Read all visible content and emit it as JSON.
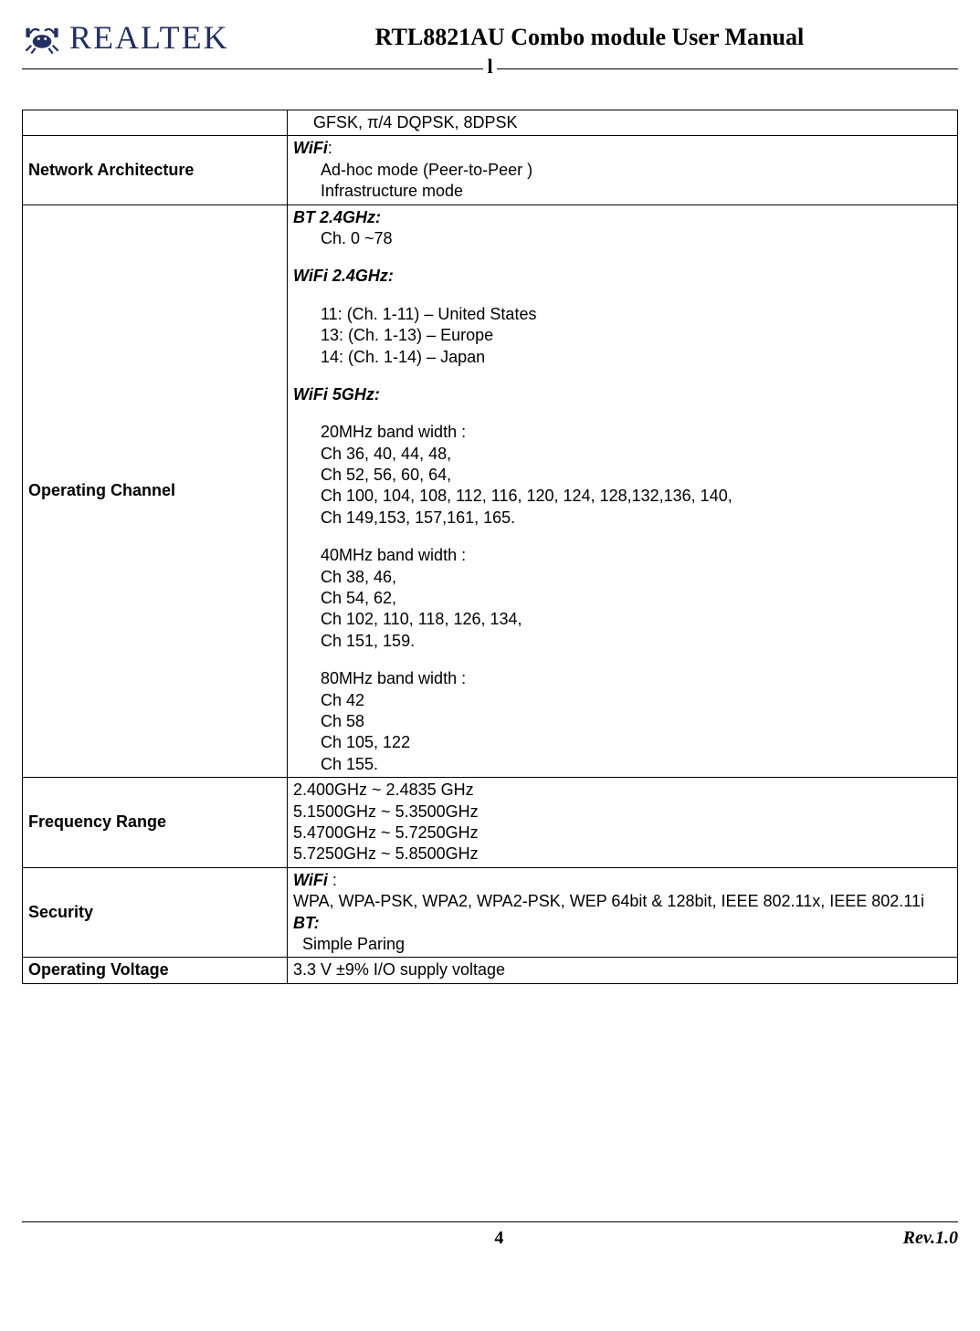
{
  "header": {
    "brand": "REALTEK",
    "doc_title": "RTL8821AU Combo module User Manual",
    "header_l_char": "l",
    "logo_color": "#232f61"
  },
  "table": {
    "rows": [
      {
        "label": "",
        "value_html": "<span class='small-indent'>GFSK, &pi;/4 DQPSK, 8DPSK</span>"
      },
      {
        "label": "Network Architecture",
        "value_html": "<span class='bi'>WiFi</span>:<br><span class='indent'>Ad-hoc mode (Peer-to-Peer )</span><span class='indent'>Infrastructure mode</span>"
      },
      {
        "label": "Operating Channel",
        "value_html": "<span class='bi'>BT 2.4GHz:</span><br><span class='indent'>Ch. 0 ~78</span><span class='sp'></span><span class='bi'>WiFi 2.4GHz:</span><br><span class='sp'></span><span class='indent'>11: (Ch. 1-11) &ndash; United States</span><span class='indent'>13: (Ch. 1-13) &ndash; Europe</span><span class='indent'>14: (Ch. 1-14) &ndash; Japan</span><span class='sp'></span><span class='bi'>WiFi 5GHz:</span><br><span class='sp'></span><span class='indent'>20MHz band width :</span><span class='indent'>Ch 36, 40, 44, 48,</span><span class='indent'>Ch 52, 56, 60, 64,</span><span class='indent'>Ch 100, 104, 108, 112, 116, 120, 124, 128,132,136, 140,</span><span class='indent'>Ch 149,153, 157,161, 165.</span><span class='sp'></span><span class='indent'>40MHz band width :</span><span class='indent'>Ch 38, 46,</span><span class='indent'>Ch 54, 62,</span><span class='indent'>Ch 102, 110, 118, 126, 134,</span><span class='indent'>Ch 151, 159.</span><span class='sp'></span><span class='indent'>80MHz band width :</span><span class='indent'>Ch 42</span><span class='indent'>Ch 58</span><span class='indent'>Ch 105, 122</span><span class='indent'>Ch 155.</span>"
      },
      {
        "label": "Frequency Range",
        "value_html": "2.400GHz ~ 2.4835 GHz<br>5.1500GHz ~ 5.3500GHz<br>5.4700GHz ~ 5.7250GHz<br>5.7250GHz ~ 5.8500GHz"
      },
      {
        "label": "Security",
        "value_html": " <span class='bi'>WiFi</span> :<br>WPA, WPA-PSK, WPA2, WPA2-PSK, WEP 64bit &amp; 128bit, IEEE 802.11x, IEEE 802.11i<br><span class='bi'>BT:</span><br>&nbsp;&nbsp;Simple Paring"
      },
      {
        "label": "Operating Voltage",
        "value_html": "3.3 V &plusmn;9% I/O supply voltage"
      }
    ]
  },
  "footer": {
    "page": "4",
    "rev": "Rev.1.0"
  }
}
